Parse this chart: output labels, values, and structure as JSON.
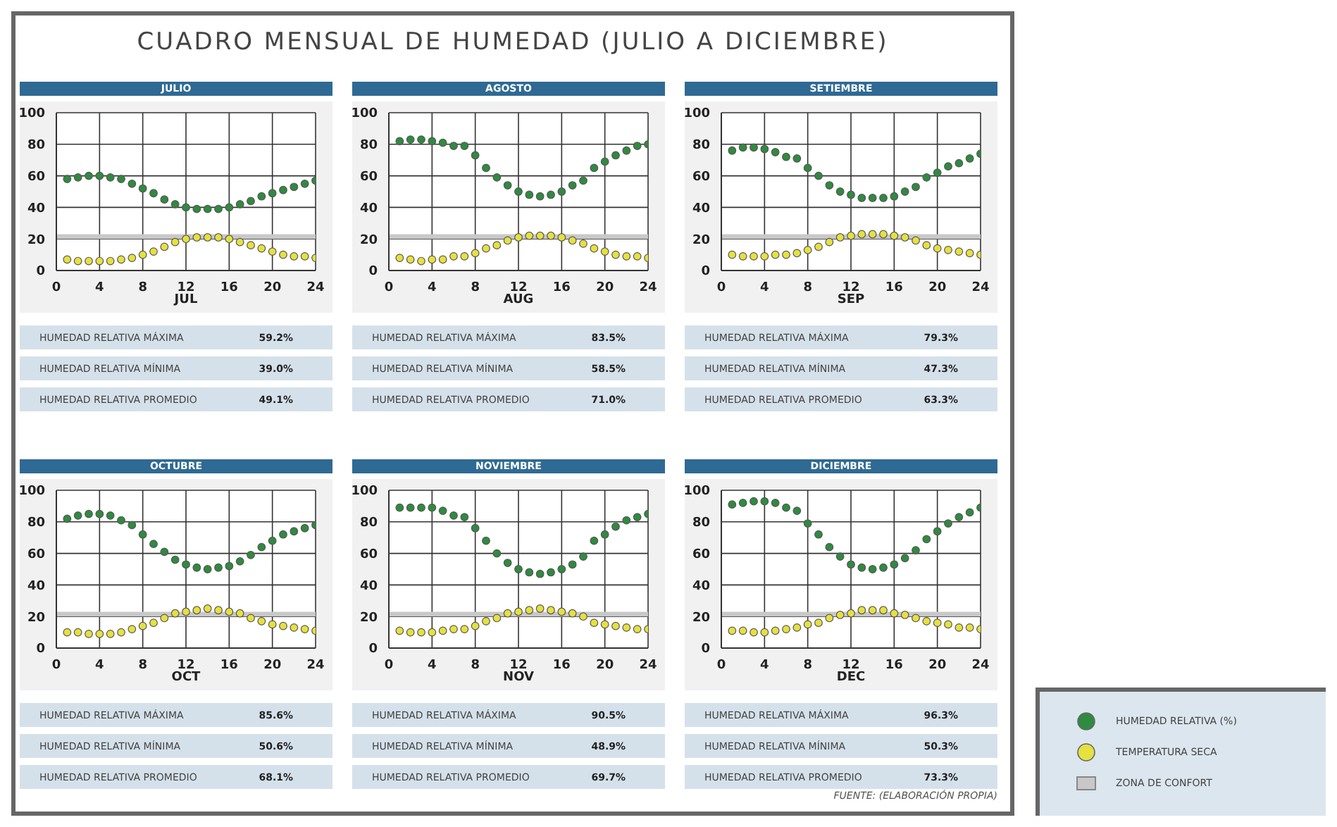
{
  "chart_data": [
    {
      "type": "scatter",
      "title": "CUADRO MENSUAL DE HUMEDAD (JULIO A DICIEMBRE)",
      "subtitle": "JULIO",
      "xlabel": "JUL",
      "x": [
        1,
        2,
        3,
        4,
        5,
        6,
        7,
        8,
        9,
        10,
        11,
        12,
        13,
        14,
        15,
        16,
        17,
        18,
        19,
        20,
        21,
        22,
        23,
        24
      ],
      "xlim": [
        0,
        24
      ],
      "xticks": [
        0,
        4,
        8,
        12,
        16,
        20,
        24
      ],
      "ylim": [
        0,
        100
      ],
      "yticks": [
        0,
        20,
        40,
        60,
        80,
        100
      ],
      "grid": true,
      "marker": "circle",
      "series": [
        {
          "color": "#2e8b3f",
          "values": [
            58,
            59,
            60,
            60,
            59,
            58,
            55,
            52,
            49,
            45,
            42,
            40,
            39,
            39,
            39,
            40,
            42,
            44,
            47,
            49,
            51,
            53,
            55,
            57
          ]
        },
        {
          "color": "#e6e040",
          "values": [
            7,
            6,
            6,
            6,
            6,
            7,
            8,
            10,
            12,
            15,
            18,
            20,
            21,
            21,
            21,
            20,
            18,
            16,
            14,
            12,
            10,
            9,
            9,
            8
          ]
        }
      ],
      "bands": [
        {
          "axis": "y",
          "from": 20,
          "to": 23,
          "color": "#c8c8c8"
        }
      ],
      "annotations": [
        "HUMEDAD RELATIVA MÁXIMA",
        "59.2%",
        "HUMEDAD RELATIVA MÍNIMA",
        "39.0%",
        "HUMEDAD RELATIVA PROMEDIO",
        "49.1%"
      ]
    },
    {
      "type": "scatter",
      "subtitle": "AGOSTO",
      "xlabel": "AUG",
      "x": [
        1,
        2,
        3,
        4,
        5,
        6,
        7,
        8,
        9,
        10,
        11,
        12,
        13,
        14,
        15,
        16,
        17,
        18,
        19,
        20,
        21,
        22,
        23,
        24
      ],
      "xlim": [
        0,
        24
      ],
      "xticks": [
        0,
        4,
        8,
        12,
        16,
        20,
        24
      ],
      "ylim": [
        0,
        100
      ],
      "yticks": [
        0,
        20,
        40,
        60,
        80,
        100
      ],
      "grid": true,
      "marker": "circle",
      "series": [
        {
          "color": "#2e8b3f",
          "values": [
            82,
            83,
            83,
            82,
            81,
            79,
            79,
            73,
            65,
            59,
            54,
            50,
            48,
            47,
            48,
            50,
            54,
            57,
            65,
            69,
            73,
            76,
            79,
            80
          ]
        },
        {
          "color": "#e6e040",
          "values": [
            8,
            7,
            6,
            7,
            7,
            9,
            9,
            11,
            14,
            16,
            19,
            21,
            22,
            22,
            22,
            21,
            19,
            17,
            14,
            12,
            10,
            9,
            9,
            8
          ]
        }
      ],
      "bands": [
        {
          "axis": "y",
          "from": 20,
          "to": 23,
          "color": "#c8c8c8"
        }
      ],
      "annotations": [
        "HUMEDAD RELATIVA MÁXIMA",
        "83.5%",
        "HUMEDAD RELATIVA MÍNIMA",
        "58.5%",
        "HUMEDAD RELATIVA PROMEDIO",
        "71.0%"
      ]
    },
    {
      "type": "scatter",
      "subtitle": "SETIEMBRE",
      "xlabel": "SEP",
      "x": [
        1,
        2,
        3,
        4,
        5,
        6,
        7,
        8,
        9,
        10,
        11,
        12,
        13,
        14,
        15,
        16,
        17,
        18,
        19,
        20,
        21,
        22,
        23,
        24
      ],
      "xlim": [
        0,
        24
      ],
      "xticks": [
        0,
        4,
        8,
        12,
        16,
        20,
        24
      ],
      "ylim": [
        0,
        100
      ],
      "yticks": [
        0,
        20,
        40,
        60,
        80,
        100
      ],
      "grid": true,
      "marker": "circle",
      "series": [
        {
          "color": "#2e8b3f",
          "values": [
            76,
            78,
            78,
            77,
            75,
            72,
            71,
            65,
            60,
            54,
            50,
            48,
            46,
            46,
            46,
            47,
            50,
            53,
            59,
            62,
            66,
            68,
            71,
            74
          ]
        },
        {
          "color": "#e6e040",
          "values": [
            10,
            9,
            9,
            9,
            10,
            10,
            11,
            13,
            15,
            18,
            21,
            22,
            23,
            23,
            23,
            22,
            21,
            19,
            16,
            14,
            13,
            12,
            11,
            10
          ]
        }
      ],
      "bands": [
        {
          "axis": "y",
          "from": 20,
          "to": 23,
          "color": "#c8c8c8"
        }
      ],
      "annotations": [
        "HUMEDAD RELATIVA MÁXIMA",
        "79.3%",
        "HUMEDAD RELATIVA MÍNIMA",
        "47.3%",
        "HUMEDAD RELATIVA PROMEDIO",
        "63.3%"
      ]
    },
    {
      "type": "scatter",
      "subtitle": "OCTUBRE",
      "xlabel": "OCT",
      "x": [
        1,
        2,
        3,
        4,
        5,
        6,
        7,
        8,
        9,
        10,
        11,
        12,
        13,
        14,
        15,
        16,
        17,
        18,
        19,
        20,
        21,
        22,
        23,
        24
      ],
      "xlim": [
        0,
        24
      ],
      "xticks": [
        0,
        4,
        8,
        12,
        16,
        20,
        24
      ],
      "ylim": [
        0,
        100
      ],
      "yticks": [
        0,
        20,
        40,
        60,
        80,
        100
      ],
      "grid": true,
      "marker": "circle",
      "series": [
        {
          "color": "#2e8b3f",
          "values": [
            82,
            84,
            85,
            85,
            84,
            81,
            78,
            72,
            66,
            61,
            56,
            53,
            51,
            50,
            51,
            52,
            55,
            59,
            64,
            68,
            72,
            74,
            76,
            78
          ]
        },
        {
          "color": "#e6e040",
          "values": [
            10,
            10,
            9,
            9,
            9,
            10,
            12,
            14,
            16,
            19,
            22,
            23,
            24,
            25,
            24,
            23,
            22,
            19,
            17,
            15,
            14,
            13,
            12,
            11
          ]
        }
      ],
      "bands": [
        {
          "axis": "y",
          "from": 20,
          "to": 23,
          "color": "#c8c8c8"
        }
      ],
      "annotations": [
        "HUMEDAD RELATIVA MÁXIMA",
        "85.6%",
        "HUMEDAD RELATIVA MÍNIMA",
        "50.6%",
        "HUMEDAD RELATIVA PROMEDIO",
        "68.1%"
      ]
    },
    {
      "type": "scatter",
      "subtitle": "NOVIEMBRE",
      "xlabel": "NOV",
      "x": [
        1,
        2,
        3,
        4,
        5,
        6,
        7,
        8,
        9,
        10,
        11,
        12,
        13,
        14,
        15,
        16,
        17,
        18,
        19,
        20,
        21,
        22,
        23,
        24
      ],
      "xlim": [
        0,
        24
      ],
      "xticks": [
        0,
        4,
        8,
        12,
        16,
        20,
        24
      ],
      "ylim": [
        0,
        100
      ],
      "yticks": [
        0,
        20,
        40,
        60,
        80,
        100
      ],
      "grid": true,
      "marker": "circle",
      "series": [
        {
          "color": "#2e8b3f",
          "values": [
            89,
            89,
            89,
            89,
            87,
            84,
            83,
            76,
            68,
            60,
            54,
            50,
            48,
            47,
            48,
            50,
            53,
            58,
            68,
            72,
            77,
            81,
            83,
            85
          ]
        },
        {
          "color": "#e6e040",
          "values": [
            11,
            10,
            10,
            10,
            11,
            12,
            12,
            14,
            17,
            19,
            22,
            23,
            24,
            25,
            24,
            23,
            22,
            20,
            16,
            15,
            14,
            13,
            12,
            12
          ]
        }
      ],
      "bands": [
        {
          "axis": "y",
          "from": 20,
          "to": 23,
          "color": "#c8c8c8"
        }
      ],
      "annotations": [
        "HUMEDAD RELATIVA MÁXIMA",
        "90.5%",
        "HUMEDAD RELATIVA MÍNIMA",
        "48.9%",
        "HUMEDAD RELATIVA PROMEDIO",
        "69.7%"
      ]
    },
    {
      "type": "scatter",
      "subtitle": "DICIEMBRE",
      "xlabel": "DEC",
      "x": [
        1,
        2,
        3,
        4,
        5,
        6,
        7,
        8,
        9,
        10,
        11,
        12,
        13,
        14,
        15,
        16,
        17,
        18,
        19,
        20,
        21,
        22,
        23,
        24
      ],
      "xlim": [
        0,
        24
      ],
      "xticks": [
        0,
        4,
        8,
        12,
        16,
        20,
        24
      ],
      "ylim": [
        0,
        100
      ],
      "yticks": [
        0,
        20,
        40,
        60,
        80,
        100
      ],
      "grid": true,
      "marker": "circle",
      "legend": "bottom right",
      "series": [
        {
          "name": "HUMEDAD RELATIVA (%)",
          "color": "#2e8b3f",
          "values": [
            91,
            92,
            93,
            93,
            92,
            89,
            87,
            79,
            72,
            64,
            58,
            53,
            51,
            50,
            51,
            53,
            57,
            62,
            69,
            74,
            79,
            83,
            86,
            89
          ]
        },
        {
          "name": "TEMPERATURA SECA",
          "color": "#e6e040",
          "values": [
            11,
            11,
            10,
            10,
            11,
            12,
            13,
            15,
            16,
            19,
            21,
            22,
            24,
            24,
            24,
            22,
            21,
            19,
            17,
            16,
            15,
            13,
            13,
            12
          ]
        }
      ],
      "bands": [
        {
          "axis": "y",
          "from": 20,
          "to": 23,
          "color": "#c8c8c8",
          "label": "ZONA DE CONFORT"
        }
      ],
      "annotations": [
        "HUMEDAD RELATIVA MÁXIMA",
        "96.3%",
        "HUMEDAD RELATIVA MÍNIMA",
        "50.3%",
        "HUMEDAD RELATIVA PROMEDIO",
        "73.3%",
        "FUENTE: (ELABORACIÓN PROPIA)"
      ]
    }
  ]
}
